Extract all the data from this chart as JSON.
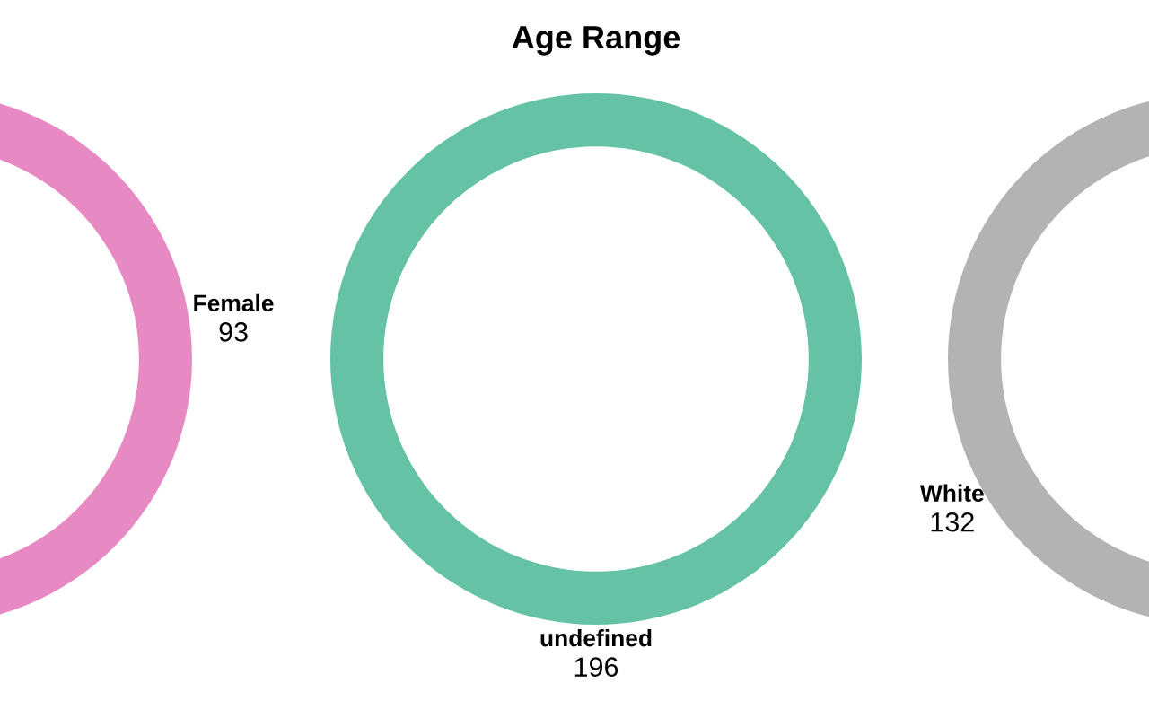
{
  "chart_data": [
    {
      "type": "donut",
      "categories": [
        "Female"
      ],
      "values": [
        93
      ],
      "colors": [
        "#e78ac3"
      ],
      "data_labels": true
    },
    {
      "type": "donut",
      "title": "Age Range",
      "categories": [
        "undefined"
      ],
      "values": [
        196
      ],
      "colors": [
        "#66c2a5"
      ],
      "data_labels": true
    },
    {
      "type": "donut",
      "categories": [
        "White"
      ],
      "values": [
        132
      ],
      "colors": [
        "#b3b3b3"
      ],
      "data_labels": true
    }
  ]
}
